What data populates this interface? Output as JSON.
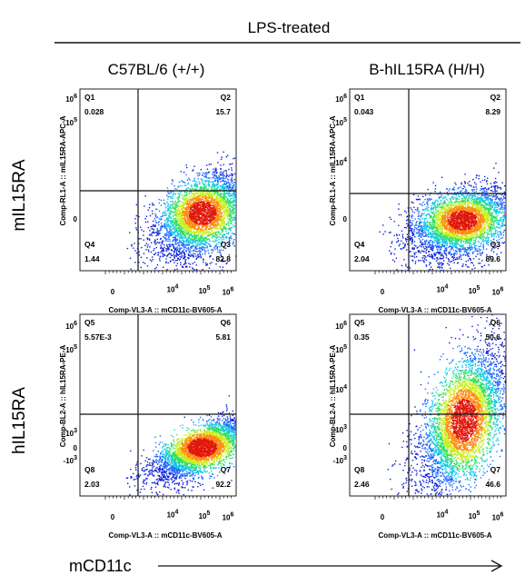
{
  "header": {
    "title": "LPS-treated"
  },
  "columns": [
    "C57BL/6 (+/+)",
    "B-hIL15RA (H/H)"
  ],
  "rows": [
    "mIL15RA",
    "hIL15RA"
  ],
  "bottom_axis": {
    "label": "mCD11c"
  },
  "colors": {
    "density": [
      "#0a1fd6",
      "#1e6bff",
      "#16c8e6",
      "#2fe066",
      "#c9ee1a",
      "#ff8a10",
      "#e0180c"
    ]
  },
  "chart_data": [
    {
      "type": "scatter",
      "panel": "C57BL/6 (+/+) / mIL15RA",
      "ylabel": "Comp-RL1-A :: mIL15RA-APC-A",
      "xlabel": "Comp-VL3-A :: mCD11c-BV605-A",
      "x_ticks": [
        "0",
        "10^4",
        "10^5",
        "10^6"
      ],
      "y_ticks": [
        "10^6",
        "10^5",
        "0"
      ],
      "quadrants": [
        {
          "id": "Q1",
          "value": "0.028"
        },
        {
          "id": "Q2",
          "value": "15.7"
        },
        {
          "id": "Q4",
          "value": "1.44"
        },
        {
          "id": "Q3",
          "value": "82.8"
        }
      ]
    },
    {
      "type": "scatter",
      "panel": "B-hIL15RA (H/H) / mIL15RA",
      "ylabel": "Comp-RL1-A :: mIL15RA-APC-A",
      "xlabel": "Comp-VL3-A :: mCD11c-BV605-A",
      "x_ticks": [
        "0",
        "10^4",
        "10^5",
        "10^6"
      ],
      "y_ticks": [
        "10^6",
        "10^5",
        "10^4",
        "0"
      ],
      "quadrants": [
        {
          "id": "Q1",
          "value": "0.043"
        },
        {
          "id": "Q2",
          "value": "8.29"
        },
        {
          "id": "Q4",
          "value": "2.04"
        },
        {
          "id": "Q3",
          "value": "89.6"
        }
      ]
    },
    {
      "type": "scatter",
      "panel": "C57BL/6 (+/+) / hIL15RA",
      "ylabel": "Comp-BL2-A :: hIL15RA-PE-A",
      "xlabel": "Comp-VL3-A :: mCD11c-BV605-A",
      "x_ticks": [
        "0",
        "10^4",
        "10^5",
        "10^6"
      ],
      "y_ticks": [
        "10^6",
        "10^5",
        "10^3",
        "0",
        "-10^3"
      ],
      "quadrants": [
        {
          "id": "Q5",
          "value": "5.57E-3"
        },
        {
          "id": "Q6",
          "value": "5.81"
        },
        {
          "id": "Q8",
          "value": "2.03"
        },
        {
          "id": "Q7",
          "value": "92.2"
        }
      ]
    },
    {
      "type": "scatter",
      "panel": "B-hIL15RA (H/H) / hIL15RA",
      "ylabel": "Comp-BL2-A :: hIL15RA-PE-A",
      "xlabel": "Comp-VL3-A :: mCD11c-BV605-A",
      "x_ticks": [
        "0",
        "10^4",
        "10^5",
        "10^6"
      ],
      "y_ticks": [
        "10^6",
        "10^5",
        "10^4",
        "10^3",
        "0",
        "-10^3"
      ],
      "quadrants": [
        {
          "id": "Q5",
          "value": "0.35"
        },
        {
          "id": "Q6",
          "value": "50.6"
        },
        {
          "id": "Q8",
          "value": "2.46"
        },
        {
          "id": "Q7",
          "value": "46.6"
        }
      ]
    }
  ]
}
